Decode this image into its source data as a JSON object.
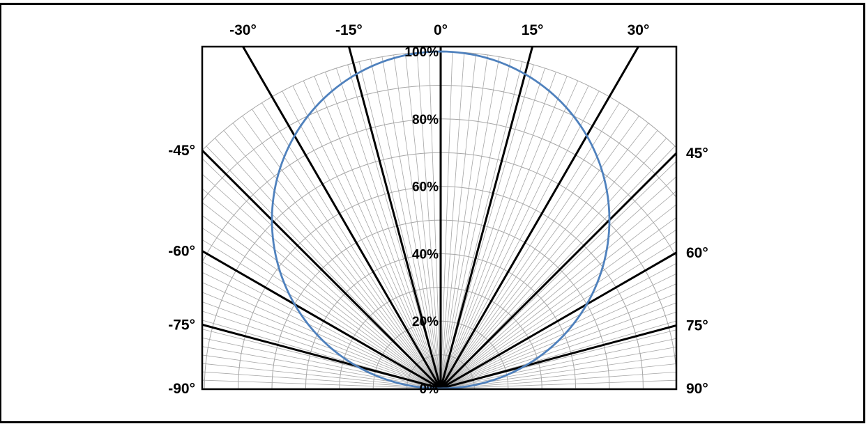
{
  "chart_data": {
    "type": "polar-line",
    "title": "",
    "angle_range_deg": [
      -90,
      90
    ],
    "radial_range": [
      0,
      100
    ],
    "radial_unit": "%",
    "radial_ticks": [
      {
        "value": 0,
        "label": "0%"
      },
      {
        "value": 20,
        "label": "20%"
      },
      {
        "value": 40,
        "label": "40%"
      },
      {
        "value": 60,
        "label": "60%"
      },
      {
        "value": 80,
        "label": "80%"
      },
      {
        "value": 100,
        "label": "100%"
      }
    ],
    "radial_minor_step": 10,
    "angle_minor_step_deg": 2,
    "major_angles_deg": [
      -75,
      -60,
      -45,
      -30,
      -15,
      0,
      15,
      30,
      45,
      60,
      75
    ],
    "angle_labels": [
      {
        "deg": -30,
        "label": "-30°",
        "side": "top"
      },
      {
        "deg": -15,
        "label": "-15°",
        "side": "top"
      },
      {
        "deg": 0,
        "label": "0°",
        "side": "top"
      },
      {
        "deg": 15,
        "label": "15°",
        "side": "top"
      },
      {
        "deg": 30,
        "label": "30°",
        "side": "top"
      },
      {
        "deg": -45,
        "label": "-45°",
        "side": "left"
      },
      {
        "deg": -60,
        "label": "-60°",
        "side": "left"
      },
      {
        "deg": -75,
        "label": "-75°",
        "side": "left"
      },
      {
        "deg": -90,
        "label": "-90°",
        "side": "left"
      },
      {
        "deg": 45,
        "label": "45°",
        "side": "right"
      },
      {
        "deg": 60,
        "label": "60°",
        "side": "right"
      },
      {
        "deg": 75,
        "label": "75°",
        "side": "right"
      },
      {
        "deg": 90,
        "label": "90°",
        "side": "right"
      }
    ],
    "series": [
      {
        "pattern": "cosine",
        "color": "#4f81bd",
        "points": [
          {
            "deg": -90,
            "r": 0
          },
          {
            "deg": -75,
            "r": 26
          },
          {
            "deg": -60,
            "r": 50
          },
          {
            "deg": -45,
            "r": 71
          },
          {
            "deg": -30,
            "r": 87
          },
          {
            "deg": -15,
            "r": 97
          },
          {
            "deg": 0,
            "r": 100
          },
          {
            "deg": 15,
            "r": 97
          },
          {
            "deg": 30,
            "r": 87
          },
          {
            "deg": 45,
            "r": 71
          },
          {
            "deg": 60,
            "r": 50
          },
          {
            "deg": 75,
            "r": 26
          },
          {
            "deg": 90,
            "r": 0
          }
        ]
      }
    ],
    "grid": true,
    "legend": "none"
  }
}
